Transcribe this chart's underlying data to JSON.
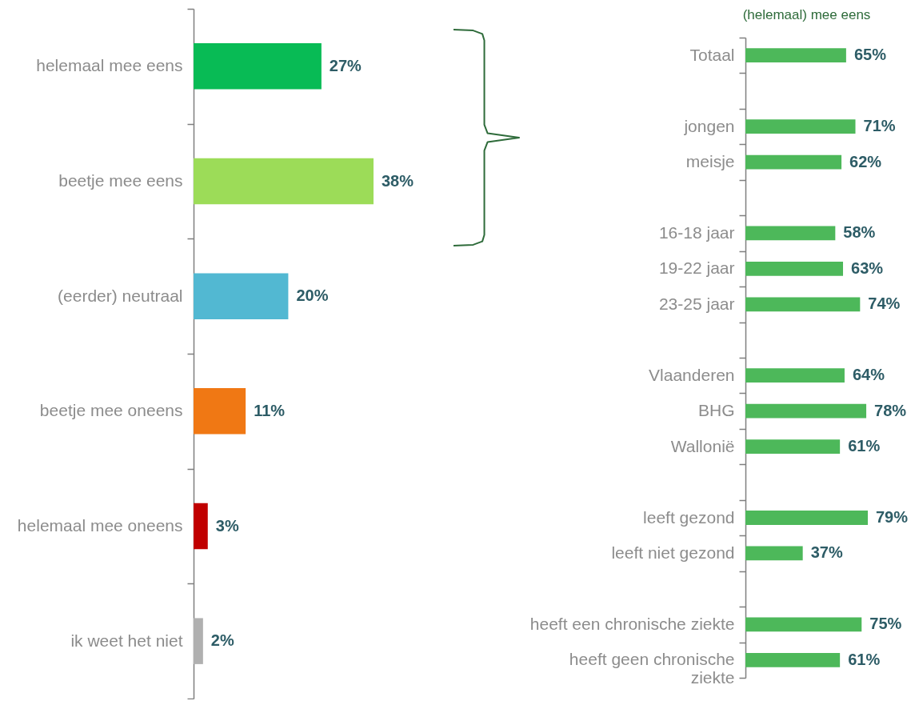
{
  "chart_data": [
    {
      "type": "bar",
      "orientation": "horizontal",
      "categories": [
        "helemaal mee eens",
        "beetje mee eens",
        "(eerder) neutraal",
        "beetje mee oneens",
        "helemaal mee oneens",
        "ik weet het niet"
      ],
      "values": [
        27,
        38,
        20,
        11,
        3,
        2
      ],
      "colors": [
        "#08bb55",
        "#9cdc58",
        "#52b8d2",
        "#f07814",
        "#c00000",
        "#b0b0b0"
      ],
      "value_labels": [
        "27%",
        "38%",
        "20%",
        "11%",
        "3%",
        "2%"
      ]
    },
    {
      "type": "bar",
      "orientation": "horizontal",
      "title": "(helemaal) mee eens",
      "categories": [
        "Totaal",
        null,
        "jongen",
        "meisje",
        null,
        "16-18 jaar",
        "19-22 jaar",
        "23-25 jaar",
        null,
        "Vlaanderen",
        "BHG",
        "Wallonië",
        null,
        "leeft gezond",
        "leeft niet gezond",
        null,
        "heeft een chronische ziekte",
        "heeft geen chronische ziekte"
      ],
      "values": [
        65,
        null,
        71,
        62,
        null,
        58,
        63,
        74,
        null,
        64,
        78,
        61,
        null,
        79,
        37,
        null,
        75,
        61
      ],
      "color": "#4db85a",
      "value_labels": [
        "65%",
        null,
        "71%",
        "62%",
        null,
        "58%",
        "63%",
        "74%",
        null,
        "64%",
        "78%",
        "61%",
        null,
        "79%",
        "37%",
        null,
        "75%",
        "61%"
      ]
    }
  ]
}
